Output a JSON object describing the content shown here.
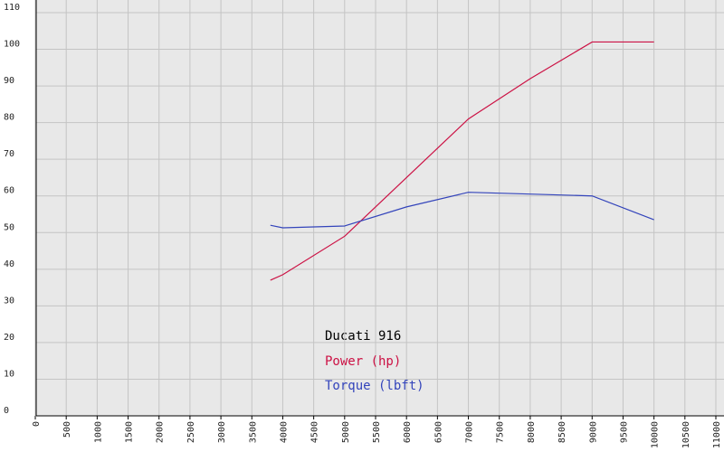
{
  "chart_data": {
    "type": "line",
    "legend_title": "Ducati 916",
    "x": [
      3800,
      4000,
      5000,
      6000,
      7000,
      8000,
      9000,
      10000
    ],
    "series": [
      {
        "name": "Power (hp)",
        "color": "#cc1144",
        "values": [
          37,
          38.5,
          49,
          65,
          81,
          92,
          102,
          102
        ]
      },
      {
        "name": "Torque (lbft)",
        "color": "#3344bb",
        "values": [
          52,
          51.3,
          51.8,
          57,
          61,
          60.5,
          60,
          53.5
        ]
      }
    ],
    "xlim": [
      0,
      11000
    ],
    "xticks": [
      0,
      500,
      1000,
      1500,
      2000,
      2500,
      3000,
      3500,
      4000,
      4500,
      5000,
      5500,
      6000,
      6500,
      7000,
      7500,
      8000,
      8500,
      9000,
      9500,
      10000,
      10500,
      11000
    ],
    "ylim": [
      0,
      110
    ],
    "yticks": [
      0,
      10,
      20,
      30,
      40,
      50,
      60,
      70,
      80,
      90,
      100,
      110
    ],
    "grid": true
  }
}
